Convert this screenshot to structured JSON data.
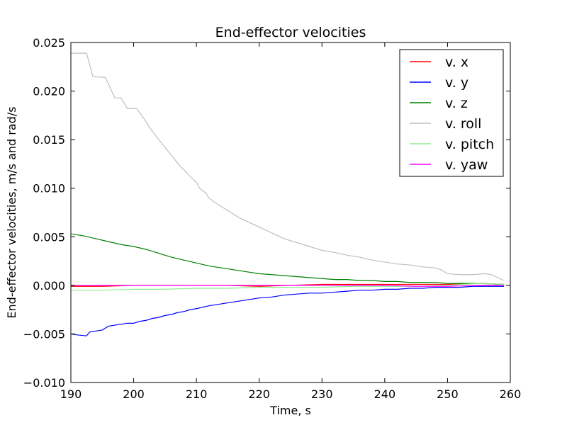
{
  "chart_data": {
    "type": "line",
    "title": "End-effector velocities",
    "xlabel": "Time, s",
    "ylabel": "End-effector velocities, m/s and rad/s",
    "xlim": [
      190,
      260
    ],
    "ylim": [
      -0.01,
      0.025
    ],
    "xticks": [
      190,
      200,
      210,
      220,
      230,
      240,
      250,
      260
    ],
    "xtick_labels": [
      "190",
      "200",
      "210",
      "220",
      "230",
      "240",
      "250",
      "260"
    ],
    "yticks": [
      -0.01,
      -0.005,
      0.0,
      0.005,
      0.01,
      0.015,
      0.02,
      0.025
    ],
    "ytick_labels": [
      "−0.010",
      "−0.005",
      "0.000",
      "0.005",
      "0.010",
      "0.015",
      "0.020",
      "0.025"
    ],
    "grid": false,
    "legend_position": "top-right",
    "series": [
      {
        "name": "v. x",
        "color": "#ff0000",
        "x": [
          190,
          195,
          200,
          205,
          210,
          215,
          220,
          225,
          230,
          235,
          240,
          245,
          250,
          255,
          259
        ],
        "y": [
          -0.0001,
          -0.0001,
          0.0,
          0.0,
          0.0,
          0.0,
          -0.0001,
          0.0,
          0.0001,
          0.0001,
          0.0001,
          0.0001,
          0.0001,
          0.0002,
          0.0001
        ]
      },
      {
        "name": "v. y",
        "color": "#0000ff",
        "x": [
          190,
          191,
          192.5,
          193,
          194,
          195,
          196,
          197,
          198,
          199,
          200,
          201,
          202,
          203,
          204,
          205,
          206,
          207,
          208,
          209,
          210,
          212,
          214,
          216,
          218,
          220,
          222,
          224,
          226,
          228,
          230,
          232,
          234,
          236,
          238,
          240,
          242,
          244,
          246,
          248,
          250,
          252,
          254,
          256,
          258,
          259
        ],
        "y": [
          -0.005,
          -0.0051,
          -0.0052,
          -0.0048,
          -0.0047,
          -0.0046,
          -0.0042,
          -0.0041,
          -0.004,
          -0.0039,
          -0.0039,
          -0.0037,
          -0.0036,
          -0.0034,
          -0.0033,
          -0.0031,
          -0.003,
          -0.0028,
          -0.0027,
          -0.0025,
          -0.0024,
          -0.0021,
          -0.0019,
          -0.0017,
          -0.0015,
          -0.0013,
          -0.0012,
          -0.001,
          -0.0009,
          -0.0008,
          -0.0008,
          -0.0007,
          -0.0006,
          -0.0005,
          -0.0005,
          -0.0004,
          -0.0004,
          -0.0003,
          -0.0003,
          -0.0002,
          -0.0002,
          -0.0002,
          -0.0001,
          -0.0001,
          -0.0001,
          -0.0001
        ]
      },
      {
        "name": "v. z",
        "color": "#008000",
        "x": [
          190,
          192,
          194,
          196,
          198,
          200,
          202,
          204,
          206,
          208,
          210,
          212,
          214,
          216,
          218,
          220,
          222,
          224,
          226,
          228,
          230,
          232,
          234,
          236,
          238,
          240,
          242,
          244,
          246,
          248,
          250,
          252,
          254,
          256,
          258,
          259
        ],
        "y": [
          0.0053,
          0.0051,
          0.0048,
          0.0045,
          0.0042,
          0.004,
          0.0037,
          0.0033,
          0.0029,
          0.0026,
          0.0023,
          0.002,
          0.0018,
          0.0016,
          0.0014,
          0.0012,
          0.0011,
          0.001,
          0.0009,
          0.0008,
          0.0007,
          0.0006,
          0.0006,
          0.0005,
          0.0005,
          0.0004,
          0.0004,
          0.0003,
          0.0003,
          0.0003,
          0.0002,
          0.0002,
          0.0002,
          0.0002,
          0.0001,
          0.0001
        ]
      },
      {
        "name": "v. roll",
        "color": "#bfbfbf",
        "x": [
          190,
          192.5,
          193.5,
          195.5,
          197,
          198,
          199,
          200.5,
          201.5,
          202.5,
          203.5,
          204.5,
          205.5,
          206.5,
          207.5,
          208,
          209,
          210,
          210.5,
          211.5,
          212,
          213,
          214,
          215,
          216,
          217,
          218,
          219,
          220,
          221,
          222,
          223,
          224,
          225,
          226,
          227,
          228,
          229,
          230,
          232,
          234,
          236,
          238,
          240,
          242,
          244,
          246,
          248,
          249,
          250,
          252,
          254,
          256,
          257,
          258,
          259
        ],
        "y": [
          0.0239,
          0.0239,
          0.0215,
          0.0214,
          0.0193,
          0.0193,
          0.0182,
          0.0182,
          0.0173,
          0.0163,
          0.0154,
          0.0146,
          0.0138,
          0.013,
          0.0122,
          0.0119,
          0.0112,
          0.0106,
          0.01,
          0.0095,
          0.009,
          0.0085,
          0.0081,
          0.0077,
          0.0073,
          0.0069,
          0.0066,
          0.0063,
          0.006,
          0.0057,
          0.0054,
          0.0051,
          0.0048,
          0.0046,
          0.0044,
          0.0042,
          0.004,
          0.0038,
          0.0036,
          0.0034,
          0.0031,
          0.0029,
          0.0026,
          0.0024,
          0.0022,
          0.0021,
          0.0019,
          0.0018,
          0.0016,
          0.0012,
          0.0011,
          0.0011,
          0.0012,
          0.0011,
          0.0008,
          0.0005
        ]
      },
      {
        "name": "v. pitch",
        "color": "#90ee90",
        "x": [
          190,
          195,
          200,
          205,
          210,
          215,
          220,
          225,
          230,
          235,
          240,
          245,
          250,
          255,
          259
        ],
        "y": [
          -0.0005,
          -0.0005,
          -0.0004,
          -0.0004,
          -0.0003,
          -0.0003,
          -0.0002,
          -0.0002,
          -0.0002,
          -0.0001,
          -0.0001,
          -0.0001,
          0.0,
          0.0002,
          0.0001
        ]
      },
      {
        "name": "v. yaw",
        "color": "#ff00ff",
        "x": [
          190,
          195,
          200,
          205,
          210,
          215,
          220,
          225,
          230,
          235,
          240,
          245,
          250,
          255,
          259
        ],
        "y": [
          0.0,
          0.0,
          0.0,
          0.0,
          0.0,
          0.0,
          0.0,
          0.0,
          0.0,
          0.0,
          0.0,
          -0.0001,
          -0.0001,
          0.0,
          0.0
        ]
      }
    ]
  }
}
